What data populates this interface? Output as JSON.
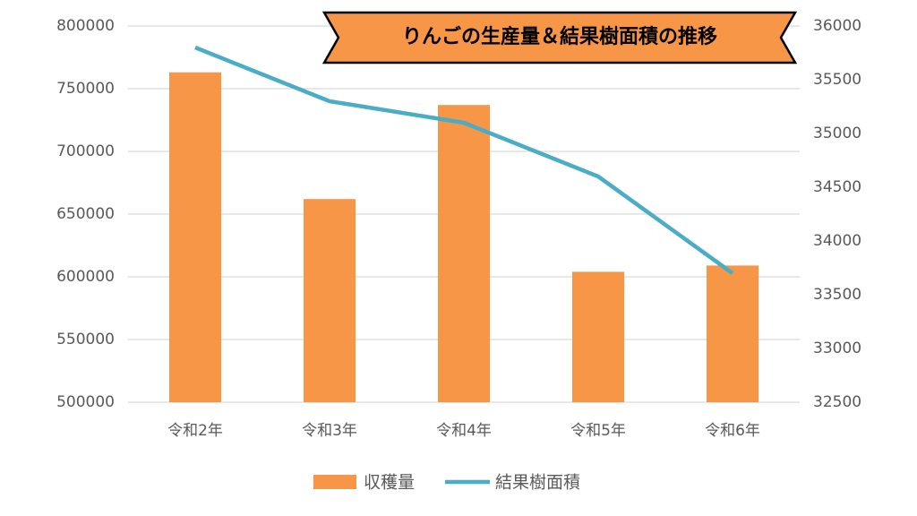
{
  "chart_data": {
    "type": "combo",
    "title": "りんごの生産量＆結果樹面積の推移",
    "categories": [
      "令和2年",
      "令和3年",
      "令和4年",
      "令和5年",
      "令和6年"
    ],
    "series": [
      {
        "name": "収穫量",
        "type": "bar",
        "color": "#f79646",
        "values": [
          763000,
          662000,
          737000,
          604000,
          609000
        ]
      },
      {
        "name": "結果樹面積",
        "type": "line",
        "axis": "y2",
        "color": "#4bacc6",
        "values": [
          35800,
          35300,
          35100,
          34600,
          33700
        ]
      }
    ],
    "ylim": [
      500000,
      800000
    ],
    "yticks": [
      500000,
      550000,
      600000,
      650000,
      700000,
      750000,
      800000
    ],
    "y2lim": [
      32500,
      36000
    ],
    "y2ticks": [
      32500,
      33000,
      33500,
      34000,
      34500,
      35000,
      35500,
      36000
    ],
    "grid": true,
    "legend": "bottom"
  }
}
